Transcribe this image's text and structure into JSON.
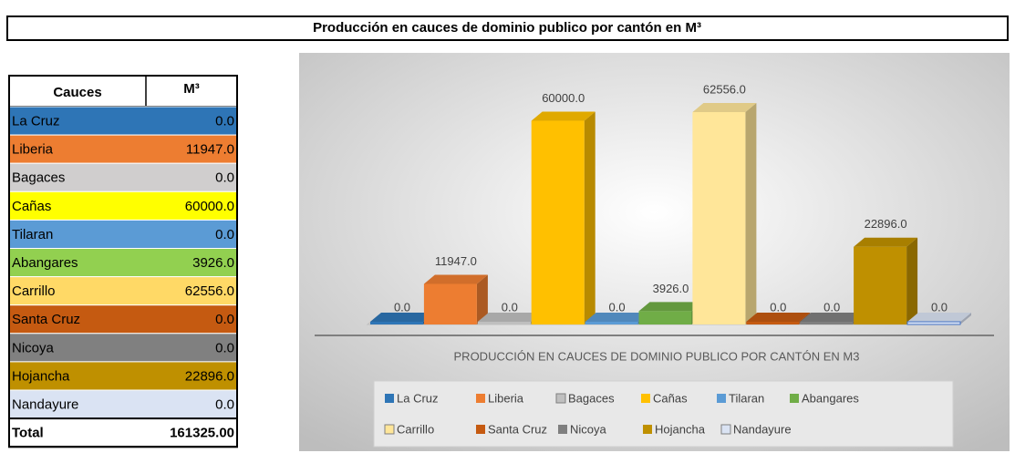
{
  "header": {
    "title": "Producción en cauces de dominio publico por cantón en M³"
  },
  "table": {
    "header": [
      "Cauces",
      "M³"
    ],
    "rows": [
      [
        "La Cruz",
        "0.0"
      ],
      [
        "Liberia",
        "11947.0"
      ],
      [
        "Bagaces",
        "0.0"
      ],
      [
        "Cañas",
        "60000.0"
      ],
      [
        "Tilaran",
        "0.0"
      ],
      [
        "Abangares",
        "3926.0"
      ],
      [
        "Carrillo",
        "62556.0"
      ],
      [
        "Santa Cruz",
        "0.0"
      ],
      [
        "Nicoya",
        "0.0"
      ],
      [
        "Hojancha",
        "22896.0"
      ],
      [
        "Nandayure",
        "0.0"
      ]
    ],
    "row_colors": [
      "#2e75b6",
      "#ed7d31",
      "#d0cece",
      "#ffff00",
      "#5b9bd5",
      "#92d050",
      "#ffd966",
      "#c55a11",
      "#808080",
      "#bf9000",
      "#dae3f3"
    ],
    "total": [
      "Total",
      "161325.00"
    ]
  },
  "chart_data": {
    "type": "bar3d",
    "title": "PRODUCCIÓN EN CAUCES DE DOMINIO PUBLICO POR CANTÓN EN M3",
    "categories": [
      "La Cruz",
      "Liberia",
      "Bagaces",
      "Cañas",
      "Tilaran",
      "Abangares",
      "Carrillo",
      "Santa Cruz",
      "Nicoya",
      "Hojancha",
      "Nandayure"
    ],
    "values": [
      0,
      11947,
      0,
      60000,
      0,
      3926,
      62556,
      0,
      0,
      22896,
      0
    ],
    "value_labels": [
      "0.0",
      "11947.0",
      "0.0",
      "60000.0",
      "0.0",
      "3926.0",
      "62556.0",
      "0.0",
      "0.0",
      "22896.0",
      "0.0"
    ],
    "colors": [
      "#2e75b6",
      "#ed7d31",
      "#bfbfbf",
      "#ffc000",
      "#5b9bd5",
      "#70ad47",
      "#ffe699",
      "#c55a11",
      "#7f7f7f",
      "#bf9000",
      "#dae3f3"
    ]
  }
}
